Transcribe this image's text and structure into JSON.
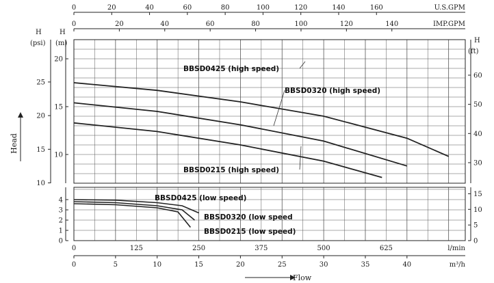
{
  "chart_data": [
    {
      "panel": "top",
      "type": "line",
      "title": "",
      "x_unit": "m³/h",
      "xlim": [
        0,
        47
      ],
      "y_scales": [
        {
          "side": "left-outer",
          "unit": "(psi)",
          "ticks": [
            10,
            15,
            20,
            25
          ]
        },
        {
          "side": "left-inner",
          "unit": "(m)",
          "ticks": [
            10,
            15,
            20
          ]
        },
        {
          "side": "right",
          "unit": "(ft)",
          "ticks": [
            30,
            40,
            50,
            60
          ]
        }
      ],
      "y_axis_letter": "H",
      "ylim_m": [
        7,
        22
      ],
      "series": [
        {
          "name": "BBSD0425 (high speed)",
          "x": [
            0,
            10,
            20,
            30,
            40,
            45
          ],
          "y": [
            17.5,
            16.7,
            15.5,
            14.0,
            11.7,
            9.8
          ]
        },
        {
          "name": "BBSD0320 (high speed)",
          "x": [
            0,
            10,
            20,
            30,
            40
          ],
          "y": [
            15.4,
            14.5,
            13.1,
            11.4,
            8.8
          ]
        },
        {
          "name": "BBSD0215 (high speed)",
          "x": [
            0,
            10,
            20,
            30,
            37
          ],
          "y": [
            13.3,
            12.4,
            11.0,
            9.3,
            7.6
          ]
        }
      ],
      "grid": true
    },
    {
      "panel": "bottom",
      "type": "line",
      "title": "",
      "xlim": [
        0,
        47
      ],
      "y_scales": [
        {
          "side": "left",
          "unit": "",
          "ticks": [
            0,
            1,
            2,
            3,
            4
          ]
        },
        {
          "side": "right",
          "unit": "",
          "ticks": [
            0,
            5,
            10,
            15
          ]
        }
      ],
      "series": [
        {
          "name": "BBSD0425 (low speed)",
          "x": [
            0,
            5,
            10,
            13,
            15
          ],
          "y": [
            4.0,
            3.95,
            3.7,
            3.4,
            2.7
          ]
        },
        {
          "name": "BBSD0320 (low speed",
          "x": [
            0,
            5,
            10,
            13,
            14.5
          ],
          "y": [
            3.8,
            3.7,
            3.4,
            3.0,
            2.0
          ]
        },
        {
          "name": "BBSD0215 (low speed)",
          "x": [
            0,
            5,
            10,
            12.5,
            14
          ],
          "y": [
            3.6,
            3.5,
            3.2,
            2.8,
            1.3
          ]
        }
      ],
      "grid": true
    }
  ],
  "axes_top": [
    {
      "unit": "U.S.GPM",
      "ticks": [
        0,
        20,
        40,
        60,
        80,
        100,
        120,
        140,
        160
      ],
      "m3h_per_unit": 0.22712
    },
    {
      "unit": "IMP.GPM",
      "ticks": [
        0,
        20,
        40,
        60,
        80,
        100,
        120,
        140
      ],
      "m3h_per_unit": 0.27276
    }
  ],
  "axes_bottom": [
    {
      "unit": "l/min",
      "ticks": [
        0,
        125,
        250,
        375,
        500,
        625
      ],
      "m3h_per_unit": 0.06
    },
    {
      "unit": "m³/h",
      "ticks": [
        0,
        5,
        10,
        15,
        20,
        25,
        30,
        35,
        40
      ]
    }
  ],
  "head_label": "Head",
  "flow_label": "Flow",
  "colors": {
    "grid": "#555555",
    "curve": "#222222",
    "arrow": "#d8d8d8"
  }
}
